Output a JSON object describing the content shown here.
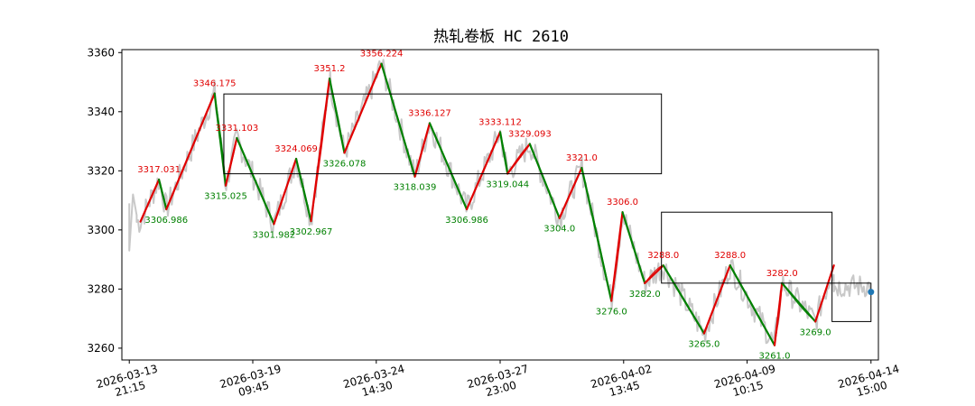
{
  "chart_data": {
    "type": "line",
    "title": "热轧卷板 HC 2610",
    "ylim": [
      3256,
      3361
    ],
    "yticks": [
      3260,
      3280,
      3300,
      3320,
      3340,
      3360
    ],
    "xlim": [
      -2,
      202
    ],
    "xticks": [
      {
        "x": 0,
        "label": "2026-03-13\n21:15"
      },
      {
        "x": 33.3,
        "label": "2026-03-19\n09:45"
      },
      {
        "x": 66.6,
        "label": "2026-03-24\n14:30"
      },
      {
        "x": 100,
        "label": "2026-03-27\n23:00"
      },
      {
        "x": 133.3,
        "label": "2026-04-02\n13:45"
      },
      {
        "x": 166.6,
        "label": "2026-04-09\n10:15"
      },
      {
        "x": 200,
        "label": "2026-04-14\n15:00"
      }
    ],
    "colors": {
      "price": "#c8c8c8",
      "up": "#e00000",
      "down": "#008000",
      "box": "#000000",
      "last": "#1f77b4"
    },
    "zigzag": [
      {
        "x": 3,
        "y": 3302.8,
        "label": ""
      },
      {
        "x": 8,
        "y": 3317.031,
        "label": "3317.031"
      },
      {
        "x": 10,
        "y": 3306.986,
        "label": "3306.986"
      },
      {
        "x": 23,
        "y": 3346.175,
        "label": "3346.175"
      },
      {
        "x": 26,
        "y": 3315.025,
        "label": "3315.025"
      },
      {
        "x": 29,
        "y": 3331.103,
        "label": "3331.103"
      },
      {
        "x": 39,
        "y": 3301.982,
        "label": "3301.982"
      },
      {
        "x": 45,
        "y": 3324.069,
        "label": "3324.069"
      },
      {
        "x": 49,
        "y": 3302.967,
        "label": "3302.967"
      },
      {
        "x": 54,
        "y": 3351.2,
        "label": "3351.2"
      },
      {
        "x": 58,
        "y": 3326.078,
        "label": "3326.078"
      },
      {
        "x": 68,
        "y": 3356.224,
        "label": "3356.224"
      },
      {
        "x": 77,
        "y": 3318.039,
        "label": "3318.039"
      },
      {
        "x": 81,
        "y": 3336.127,
        "label": "3336.127"
      },
      {
        "x": 91,
        "y": 3306.986,
        "label": "3306.986"
      },
      {
        "x": 100,
        "y": 3333.112,
        "label": "3333.112"
      },
      {
        "x": 102,
        "y": 3319.044,
        "label": "3319.044"
      },
      {
        "x": 108,
        "y": 3329.093,
        "label": "3329.093"
      },
      {
        "x": 116,
        "y": 3304.0,
        "label": "3304.0"
      },
      {
        "x": 122,
        "y": 3321.0,
        "label": "3321.0"
      },
      {
        "x": 130,
        "y": 3276.0,
        "label": "3276.0"
      },
      {
        "x": 133,
        "y": 3306.0,
        "label": "3306.0"
      },
      {
        "x": 139,
        "y": 3282.0,
        "label": "3282.0"
      },
      {
        "x": 144,
        "y": 3288.0,
        "label": "3288.0"
      },
      {
        "x": 155,
        "y": 3265.0,
        "label": "3265.0"
      },
      {
        "x": 162,
        "y": 3288.0,
        "label": "3288.0"
      },
      {
        "x": 174,
        "y": 3261.0,
        "label": "3261.0"
      },
      {
        "x": 176,
        "y": 3282.0,
        "label": "3282.0"
      },
      {
        "x": 185,
        "y": 3269.0,
        "label": "3269.0"
      },
      {
        "x": 190,
        "y": 3288.0,
        "label": ""
      }
    ],
    "boxes": [
      {
        "x0": 25.5,
        "x1": 143.5,
        "y0": 3319,
        "y1": 3346
      },
      {
        "x0": 143.5,
        "x1": 189.5,
        "y0": 3282,
        "y1": 3306
      },
      {
        "x0": 189.5,
        "x1": 200,
        "y0": 3269,
        "y1": 3282
      }
    ],
    "last_point": {
      "x": 200,
      "y": 3279
    }
  }
}
